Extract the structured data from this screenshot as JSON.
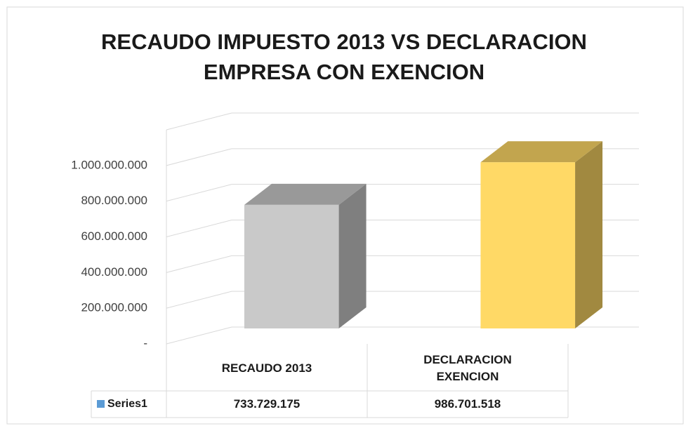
{
  "chart_data": {
    "type": "bar3d",
    "title": "RECAUDO IMPUESTO 2013 VS DECLARACION EMPRESA CON EXENCION",
    "categories": [
      "RECAUDO 2013",
      "DECLARACION EXENCION"
    ],
    "series": [
      {
        "name": "Series1",
        "color": "#5b9bd5",
        "values": [
          733729175,
          986701518
        ],
        "value_labels": [
          "733.729.175",
          "986.701.518"
        ],
        "point_colors": [
          "#c9c9c9",
          "#ffd966"
        ]
      }
    ],
    "ylim": [
      0,
      1200000000
    ],
    "yticks": [
      {
        "value": 0,
        "label": "-"
      },
      {
        "value": 200000000,
        "label": "200.000.000"
      },
      {
        "value": 400000000,
        "label": "400.000.000"
      },
      {
        "value": 600000000,
        "label": "600.000.000"
      },
      {
        "value": 800000000,
        "label": "800.000.000"
      },
      {
        "value": 1000000000,
        "label": "1.000.000.000"
      }
    ],
    "grid": true,
    "data_table": true
  }
}
